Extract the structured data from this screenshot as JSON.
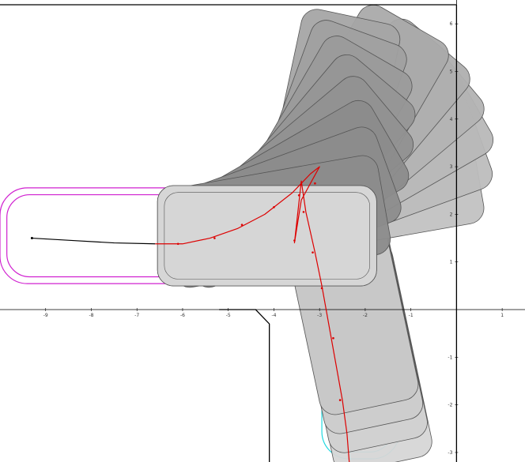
{
  "plot": {
    "xlim": [
      -10,
      1.5
    ],
    "ylim": [
      -3.2,
      6.5
    ],
    "grid": false,
    "axis_color": "#000000",
    "x_ticks": [
      {
        "value": -9,
        "label": "-9"
      },
      {
        "value": -8,
        "label": "-8"
      },
      {
        "value": -7,
        "label": "-7"
      },
      {
        "value": -6,
        "label": "-6"
      },
      {
        "value": -5,
        "label": "-5"
      },
      {
        "value": -4,
        "label": "-4"
      },
      {
        "value": -3,
        "label": "-3"
      },
      {
        "value": -2,
        "label": "-2"
      },
      {
        "value": -1,
        "label": "-1"
      },
      {
        "value": 0,
        "label": "0"
      },
      {
        "value": 1,
        "label": "1"
      }
    ],
    "y_ticks": [
      {
        "value": 6,
        "label": "6"
      },
      {
        "value": 5,
        "label": "5"
      },
      {
        "value": 4,
        "label": "4"
      },
      {
        "value": 3,
        "label": "3"
      },
      {
        "value": 2,
        "label": "2"
      },
      {
        "value": 1,
        "label": "1"
      },
      {
        "value": -1,
        "label": "-1"
      },
      {
        "value": -2,
        "label": "-2"
      },
      {
        "value": -3,
        "label": "-3"
      }
    ]
  },
  "environment": {
    "color": "#000000",
    "walls": [
      {
        "name": "top-boundary",
        "points": [
          [
            -10,
            6.4
          ],
          [
            0,
            6.4
          ]
        ]
      },
      {
        "name": "right-boundary",
        "points": [
          [
            0,
            6.4
          ],
          [
            0,
            -3.2
          ]
        ]
      },
      {
        "name": "corner-boundary",
        "points": [
          [
            -5.2,
            0.0
          ],
          [
            -4.4,
            0.0
          ],
          [
            -4.1,
            -0.3
          ],
          [
            -4.1,
            -3.2
          ]
        ]
      }
    ]
  },
  "vehicle_poses": {
    "fill_light": "#d6d6d6",
    "fill_dark": "#8c8c8c",
    "stroke": "#555555",
    "length": 4.8,
    "width": 2.2,
    "poses": [
      {
        "cx": -4.15,
        "cy": 1.55,
        "angle": 0
      },
      {
        "cx": -3.95,
        "cy": 1.85,
        "angle": 10
      },
      {
        "cx": -3.75,
        "cy": 2.15,
        "angle": 20
      },
      {
        "cx": -3.55,
        "cy": 2.45,
        "angle": 30
      },
      {
        "cx": -3.35,
        "cy": 2.75,
        "angle": 40
      },
      {
        "cx": -3.15,
        "cy": 3.05,
        "angle": 50
      },
      {
        "cx": -3.0,
        "cy": 3.35,
        "angle": 60
      },
      {
        "cx": -2.85,
        "cy": 3.65,
        "angle": 70
      },
      {
        "cx": -2.75,
        "cy": 3.9,
        "angle": 78
      },
      {
        "cx": -2.2,
        "cy": 4.0,
        "angle": 60
      },
      {
        "cx": -1.95,
        "cy": 3.8,
        "angle": 50
      },
      {
        "cx": -1.8,
        "cy": 3.5,
        "angle": 40
      },
      {
        "cx": -1.7,
        "cy": 3.2,
        "angle": 30
      },
      {
        "cx": -1.75,
        "cy": 2.85,
        "angle": 20
      },
      {
        "cx": -1.9,
        "cy": 2.5,
        "angle": 10
      },
      {
        "cx": -2.35,
        "cy": 0.2,
        "angle": -78
      },
      {
        "cx": -2.25,
        "cy": -0.2,
        "angle": -78
      },
      {
        "cx": -2.15,
        "cy": -0.6,
        "angle": -78
      },
      {
        "cx": -2.05,
        "cy": -1.0,
        "angle": -78
      }
    ]
  },
  "goal_regions": [
    {
      "name": "start-region",
      "color": "#d020d0",
      "x": [
        -10,
        -5.0
      ],
      "y": [
        0.5,
        2.6
      ]
    },
    {
      "name": "goal-region",
      "color": "#20d8e0",
      "x": [
        -2.95,
        -1.25
      ],
      "y": [
        -3.2,
        -0.1
      ]
    }
  ],
  "paths": {
    "approach": {
      "color": "#000000",
      "points": [
        [
          -9.3,
          1.5
        ],
        [
          -8.4,
          1.45
        ],
        [
          -7.5,
          1.4
        ],
        [
          -6.6,
          1.38
        ]
      ]
    },
    "maneuver": {
      "color": "#dd0000",
      "points": [
        [
          -6.6,
          1.38
        ],
        [
          -6.0,
          1.38
        ],
        [
          -5.4,
          1.5
        ],
        [
          -4.8,
          1.7
        ],
        [
          -4.2,
          2.0
        ],
        [
          -3.6,
          2.45
        ],
        [
          -3.2,
          2.85
        ],
        [
          -3.0,
          3.0
        ],
        [
          -3.4,
          2.3
        ],
        [
          -3.55,
          1.4
        ],
        [
          -3.4,
          2.7
        ],
        [
          -3.3,
          2.05
        ],
        [
          -3.1,
          1.2
        ],
        [
          -2.95,
          0.5
        ],
        [
          -2.8,
          -0.3
        ],
        [
          -2.65,
          -1.1
        ],
        [
          -2.5,
          -1.9
        ],
        [
          -2.4,
          -2.6
        ],
        [
          -2.35,
          -3.2
        ]
      ],
      "markers": [
        [
          -6.1,
          1.38
        ],
        [
          -5.3,
          1.5
        ],
        [
          -4.7,
          1.78
        ],
        [
          -4.0,
          2.15
        ],
        [
          -3.45,
          2.4
        ],
        [
          -3.1,
          2.65
        ],
        [
          -3.35,
          2.05
        ],
        [
          -3.55,
          1.45
        ],
        [
          -3.15,
          1.2
        ],
        [
          -2.95,
          0.45
        ],
        [
          -2.7,
          -0.6
        ],
        [
          -2.55,
          -1.9
        ]
      ]
    }
  }
}
